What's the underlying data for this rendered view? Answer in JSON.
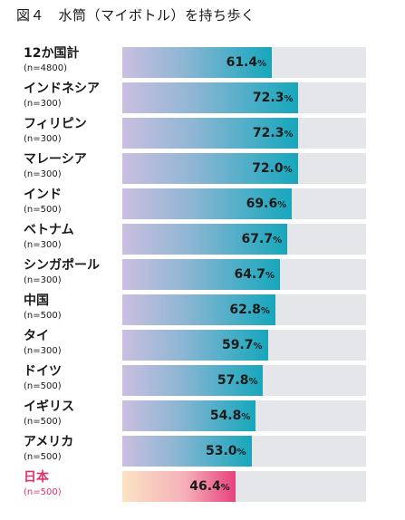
{
  "title": "図４　水筒（マイボトル）を持ち歩く",
  "chart_data": {
    "type": "bar",
    "orientation": "horizontal",
    "title": "図４　水筒（マイボトル）を持ち歩く",
    "xlim": [
      0,
      100
    ],
    "unit": "%",
    "colors": {
      "track": "#e4e6ea",
      "bar_gradient_start": "#cbbfe0",
      "bar_gradient_end": "#15a7bc",
      "highlight_gradient_start": "#fbe3c4",
      "highlight_gradient_end": "#e8417c",
      "highlight_label": "#e0306e"
    },
    "rows": [
      {
        "category": "12か国計",
        "n": "(n=4800)",
        "value": 61.4,
        "value_label": "61.4",
        "unit_label": "%",
        "highlight": false
      },
      {
        "category": "インドネシア",
        "n": "(n=300)",
        "value": 72.3,
        "value_label": "72.3",
        "unit_label": "%",
        "highlight": false
      },
      {
        "category": "フィリピン",
        "n": "(n=300)",
        "value": 72.3,
        "value_label": "72.3",
        "unit_label": "%",
        "highlight": false
      },
      {
        "category": "マレーシア",
        "n": "(n=300)",
        "value": 72.0,
        "value_label": "72.0",
        "unit_label": "%",
        "highlight": false
      },
      {
        "category": "インド",
        "n": "(n=500)",
        "value": 69.6,
        "value_label": "69.6",
        "unit_label": "%",
        "highlight": false
      },
      {
        "category": "ベトナム",
        "n": "(n=300)",
        "value": 67.7,
        "value_label": "67.7",
        "unit_label": "%",
        "highlight": false
      },
      {
        "category": "シンガポール",
        "n": "(n=300)",
        "value": 64.7,
        "value_label": "64.7",
        "unit_label": "%",
        "highlight": false
      },
      {
        "category": "中国",
        "n": "(n=500)",
        "value": 62.8,
        "value_label": "62.8",
        "unit_label": "%",
        "highlight": false
      },
      {
        "category": "タイ",
        "n": "(n=300)",
        "value": 59.7,
        "value_label": "59.7",
        "unit_label": "%",
        "highlight": false
      },
      {
        "category": "ドイツ",
        "n": "(n=500)",
        "value": 57.8,
        "value_label": "57.8",
        "unit_label": "%",
        "highlight": false
      },
      {
        "category": "イギリス",
        "n": "(n=500)",
        "value": 54.8,
        "value_label": "54.8",
        "unit_label": "%",
        "highlight": false
      },
      {
        "category": "アメリカ",
        "n": "(n=500)",
        "value": 53.0,
        "value_label": "53.0",
        "unit_label": "%",
        "highlight": false
      },
      {
        "category": "日本",
        "n": "(n=500)",
        "value": 46.4,
        "value_label": "46.4",
        "unit_label": "%",
        "highlight": true
      }
    ]
  }
}
